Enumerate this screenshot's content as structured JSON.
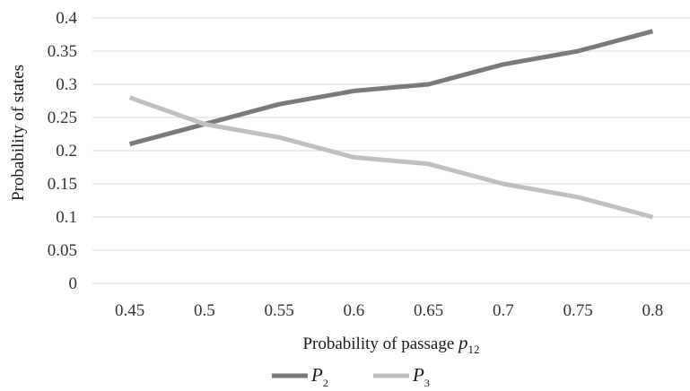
{
  "chart_data": {
    "type": "line",
    "x": [
      "0.45",
      "0.5",
      "0.55",
      "0.6",
      "0.65",
      "0.7",
      "0.75",
      "0.8"
    ],
    "series": [
      {
        "name": "P",
        "subscript": "2",
        "color": "#7a7a7a",
        "values": [
          0.21,
          0.24,
          0.27,
          0.29,
          0.3,
          0.33,
          0.35,
          0.38
        ]
      },
      {
        "name": "P",
        "subscript": "3",
        "color": "#c0c0c0",
        "values": [
          0.28,
          0.24,
          0.22,
          0.19,
          0.18,
          0.15,
          0.13,
          0.1
        ]
      }
    ],
    "yticks": [
      "0",
      "0.05",
      "0.1",
      "0.15",
      "0.2",
      "0.25",
      "0.3",
      "0.35",
      "0.4"
    ],
    "ylim": [
      0,
      0.4
    ],
    "ylabel": "Probability of states",
    "xlabel": "Probability of passage ",
    "xlabel_var": "p",
    "xlabel_sub": "12",
    "grid": true,
    "legend_position": "bottom"
  }
}
